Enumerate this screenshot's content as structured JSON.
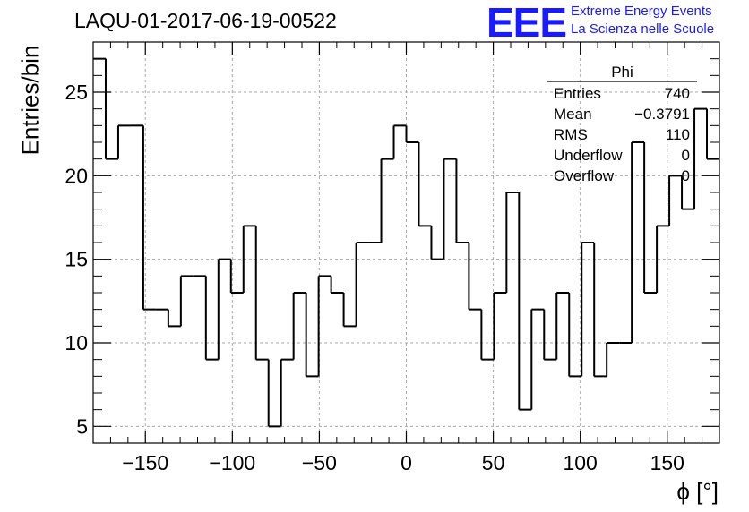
{
  "header": {
    "title": "LAQU-01-2017-06-19-00522",
    "logo": "EEE",
    "logo_line1": "Extreme Energy Events",
    "logo_line2": "La Scienza nelle Scuole"
  },
  "stats": {
    "name": "Phi",
    "rows": [
      {
        "label": "Entries",
        "value": "740"
      },
      {
        "label": "Mean",
        "value": "−0.3791"
      },
      {
        "label": "RMS",
        "value": "110"
      },
      {
        "label": "Underflow",
        "value": "0"
      },
      {
        "label": "Overflow",
        "value": "0"
      }
    ]
  },
  "colors": {
    "line": "#000000",
    "grid": "#aaaaaa",
    "logo": "#1a1aff"
  },
  "chart_data": {
    "type": "bar",
    "style": "step-histogram",
    "title": "LAQU-01-2017-06-19-00522",
    "xlabel": "ϕ [°]",
    "ylabel": "Entries/bin",
    "xlim": [
      -180,
      180
    ],
    "ylim": [
      4,
      28
    ],
    "bin_width": 7.2,
    "xticks": [
      -150,
      -100,
      -50,
      0,
      50,
      100,
      150
    ],
    "xtick_labels": [
      "−150",
      "−100",
      "−50",
      "0",
      "50",
      "100",
      "150"
    ],
    "yticks": [
      5,
      10,
      15,
      20,
      25
    ],
    "ytick_labels": [
      "5",
      "10",
      "15",
      "20",
      "25"
    ],
    "grid": true,
    "values": [
      27,
      21,
      23,
      23,
      12,
      12,
      11,
      14,
      14,
      9,
      15,
      13,
      17,
      9,
      5,
      9,
      13,
      8,
      14,
      13,
      11,
      16,
      16,
      21,
      23,
      22,
      17,
      15,
      21,
      16,
      12,
      9,
      13,
      19,
      6,
      12,
      9,
      13,
      8,
      16,
      8,
      10,
      10,
      22,
      13,
      17,
      20,
      18,
      24,
      21
    ]
  }
}
